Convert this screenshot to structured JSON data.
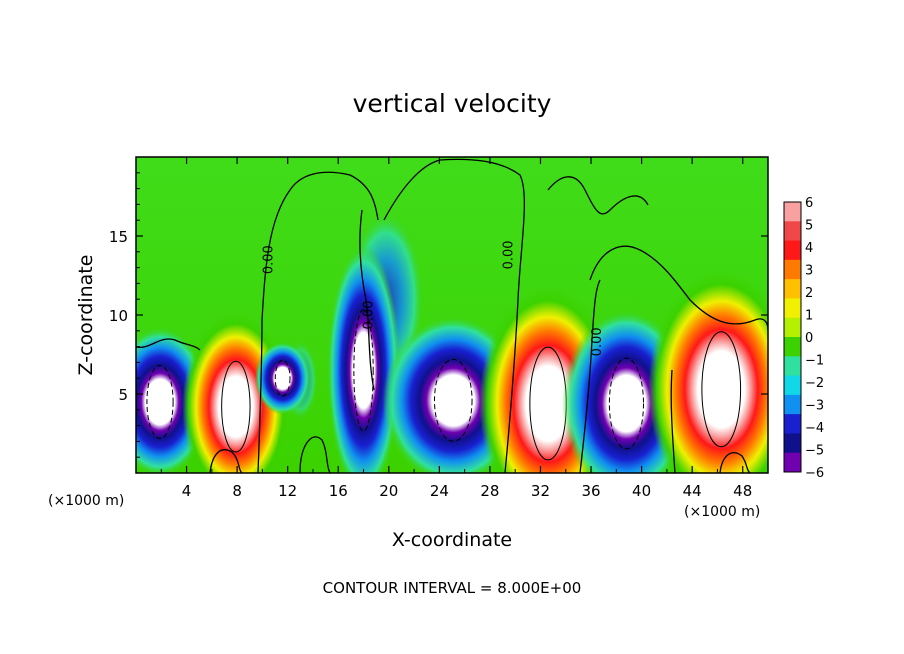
{
  "chart_data": {
    "type": "heatmap",
    "title": "vertical velocity",
    "xlabel": "X-coordinate",
    "ylabel": "Z-coordinate",
    "x_unit_left": "(×1000 m)",
    "x_unit_right": "(×1000 m)",
    "footer": "CONTOUR INTERVAL = 8.000E+00",
    "xlim": [
      0,
      50
    ],
    "ylim": [
      0,
      20
    ],
    "x_ticks": [
      4,
      8,
      12,
      16,
      20,
      24,
      28,
      32,
      36,
      40,
      44,
      48
    ],
    "y_ticks": [
      5,
      10,
      15
    ],
    "colorbar": {
      "levels": [
        6,
        5,
        4,
        3,
        2,
        1,
        0,
        -1,
        -2,
        -3,
        -4,
        -5,
        -6
      ],
      "colors": [
        "#f9a0a0",
        "#f04848",
        "#ff1818",
        "#ff7a00",
        "#ffc000",
        "#f0f000",
        "#b4f000",
        "#3cd200",
        "#30e0a0",
        "#10d8e8",
        "#1090f0",
        "#1820d0",
        "#10108c",
        "#7000b0"
      ]
    },
    "contour_labels": [
      {
        "text": "0.00",
        "x": 10.8,
        "z": 13.5,
        "rotation": -90
      },
      {
        "text": "0.00",
        "x": 18.7,
        "z": 10.0,
        "rotation": -90
      },
      {
        "text": "0.00",
        "x": 29.8,
        "z": 13.8,
        "rotation": -90
      },
      {
        "text": "0.00",
        "x": 36.8,
        "z": 8.3,
        "rotation": -90
      }
    ],
    "cells": [
      {
        "x": 1.9,
        "z": 4.5,
        "w": -10,
        "rx": 2.3,
        "rz": 3.3
      },
      {
        "x": 7.9,
        "z": 4.2,
        "w": 10,
        "rx": 2.5,
        "rz": 4.1
      },
      {
        "x": 11.6,
        "z": 6.0,
        "w": -6,
        "rx": 1.3,
        "rz": 1.6
      },
      {
        "x": 18.0,
        "z": 6.5,
        "w": -8,
        "rx": 1.7,
        "rz": 5.5
      },
      {
        "x": 25.1,
        "z": 4.6,
        "w": -12,
        "rx": 3.3,
        "rz": 3.7
      },
      {
        "x": 32.6,
        "z": 4.4,
        "w": 12,
        "rx": 3.2,
        "rz": 5.1
      },
      {
        "x": 38.8,
        "z": 4.4,
        "w": -11,
        "rx": 3.0,
        "rz": 4.1
      },
      {
        "x": 46.3,
        "z": 5.3,
        "w": 12,
        "rx": 3.4,
        "rz": 5.2
      }
    ]
  }
}
